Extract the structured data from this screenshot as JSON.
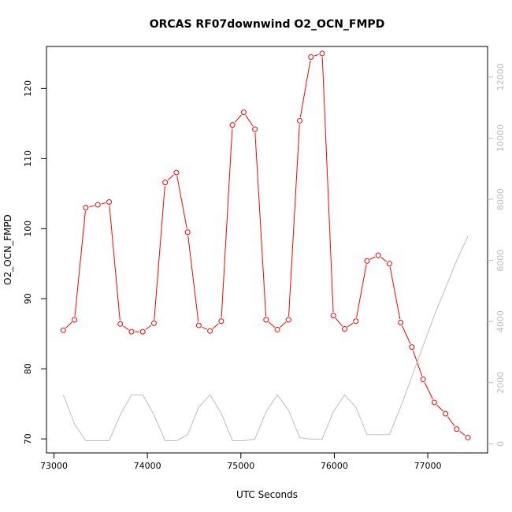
{
  "chart_data": {
    "type": "line",
    "title": "ORCAS RF07downwind O2_OCN_FMPD",
    "xlabel": "UTC Seconds",
    "ylabel": "O2_OCN_FMPD",
    "xlim": [
      72920,
      77640
    ],
    "ylim": [
      68,
      126
    ],
    "y2lim": [
      -300,
      13000
    ],
    "x_ticks": [
      73000,
      74000,
      75000,
      76000,
      77000
    ],
    "y_ticks": [
      70,
      80,
      90,
      100,
      110,
      120
    ],
    "y2_ticks": [
      0,
      2000,
      4000,
      6000,
      8000,
      10000,
      12000
    ],
    "colors": {
      "primary": "#ff0000",
      "secondary": "#bdbdbd"
    },
    "series": [
      {
        "name": "O2_OCN_FMPD",
        "axis": "left",
        "style": "line+points",
        "x": [
          73100,
          73220,
          73340,
          73470,
          73590,
          73710,
          73830,
          73950,
          74070,
          74190,
          74310,
          74430,
          74550,
          74670,
          74790,
          74910,
          75030,
          75150,
          75270,
          75390,
          75510,
          75630,
          75750,
          75870,
          75990,
          76110,
          76230,
          76350,
          76470,
          76590,
          76710,
          76830,
          76950,
          77070,
          77190,
          77310,
          77430
        ],
        "y": [
          85.5,
          87.0,
          103.0,
          103.4,
          103.8,
          86.4,
          85.3,
          85.3,
          86.5,
          106.6,
          108.0,
          99.5,
          86.2,
          85.4,
          86.8,
          114.8,
          116.6,
          114.2,
          87.0,
          85.6,
          87.0,
          115.4,
          124.5,
          125.0,
          87.6,
          85.7,
          86.8,
          95.4,
          96.2,
          95.0,
          86.6,
          83.1,
          78.5,
          75.2,
          73.6,
          71.4,
          70.2
        ]
      },
      {
        "axis": "right",
        "style": "line",
        "x": [
          73100,
          73220,
          73340,
          73470,
          73590,
          73710,
          73830,
          73950,
          74070,
          74190,
          74310,
          74430,
          74550,
          74670,
          74790,
          74910,
          75030,
          75150,
          75270,
          75390,
          75510,
          75630,
          75750,
          75870,
          75990,
          76110,
          76230,
          76350,
          76470,
          76590,
          76710,
          76830,
          76950,
          77070,
          77190,
          77310,
          77430
        ],
        "y": [
          1600,
          650,
          100,
          100,
          100,
          950,
          1600,
          1600,
          950,
          100,
          100,
          300,
          1200,
          1600,
          1000,
          100,
          100,
          150,
          1050,
          1600,
          1100,
          200,
          150,
          150,
          1050,
          1600,
          1200,
          300,
          300,
          300,
          1200,
          2200,
          3200,
          4200,
          5100,
          6000,
          6800
        ]
      }
    ]
  }
}
